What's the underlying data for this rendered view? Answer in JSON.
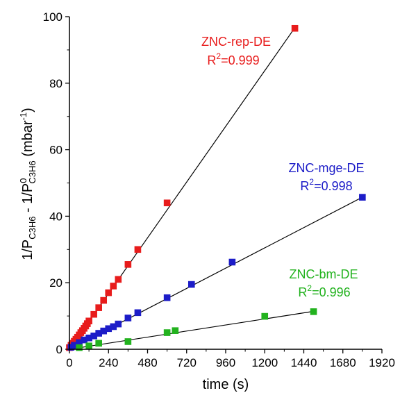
{
  "chart_data": {
    "type": "scatter",
    "xlabel": "time (s)",
    "ylabel": {
      "parts": [
        "1/P",
        "C3H6",
        " - 1/P",
        "0",
        "C3H6",
        " (mbar",
        "-1",
        ")"
      ]
    },
    "xlim": [
      0,
      1920
    ],
    "ylim": [
      0,
      100
    ],
    "xticks": [
      0,
      240,
      480,
      720,
      960,
      1200,
      1440,
      1680,
      1920
    ],
    "yticks": [
      0,
      20,
      40,
      60,
      80,
      100
    ],
    "grid": false,
    "series": [
      {
        "color": "#e81c1c",
        "label_line1": "ZNC-rep-DE",
        "label_line2": {
          "base": "R",
          "sup": "2",
          "rest": "=0.999"
        },
        "fit_slope": 0.0698,
        "fit_xrange": [
          0,
          1385
        ],
        "x": [
          0,
          10,
          20,
          30,
          40,
          50,
          60,
          70,
          80,
          90,
          100,
          110,
          120,
          150,
          180,
          210,
          240,
          270,
          300,
          360,
          420,
          600,
          1385
        ],
        "y": [
          0.5,
          1.2,
          1.8,
          2.4,
          3.0,
          3.6,
          4.3,
          5.0,
          5.6,
          6.3,
          7.0,
          7.7,
          8.5,
          10.5,
          12.5,
          14.7,
          17.0,
          19.0,
          21.0,
          25.5,
          30.0,
          44.0,
          96.5
        ]
      },
      {
        "color": "#1c1cc8",
        "label_line1": "ZNC-mge-DE",
        "label_line2": {
          "base": "R",
          "sup": "2",
          "rest": "=0.998"
        },
        "fit_slope": 0.0254,
        "fit_xrange": [
          0,
          1800
        ],
        "x": [
          10,
          30,
          60,
          90,
          120,
          150,
          180,
          210,
          240,
          270,
          300,
          360,
          420,
          600,
          750,
          1000,
          1800
        ],
        "y": [
          0.6,
          1.2,
          2.0,
          2.8,
          3.4,
          4.0,
          4.8,
          5.5,
          6.2,
          6.8,
          7.6,
          9.4,
          11.0,
          15.5,
          19.5,
          26.2,
          45.7
        ]
      },
      {
        "color": "#22b21e",
        "label_line1": "ZNC-bm-DE",
        "label_line2": {
          "base": "R",
          "sup": "2",
          "rest": "=0.996"
        },
        "fit_slope": 0.0076,
        "fit_xrange": [
          0,
          1500
        ],
        "x": [
          60,
          120,
          180,
          360,
          600,
          650,
          1200,
          1500
        ],
        "y": [
          0.5,
          1.0,
          1.8,
          2.3,
          5.0,
          5.6,
          9.9,
          11.3
        ]
      }
    ]
  }
}
